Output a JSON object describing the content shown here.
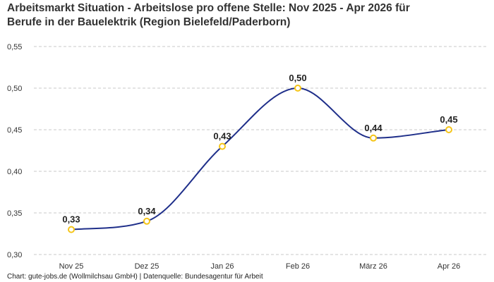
{
  "title_line1": "Arbeitsmarkt Situation - Arbeitslose pro offene Stelle: Nov 2025 - Apr 2026 für",
  "title_line2": "Berufe in der Bauelektrik (Region Bielefeld/Paderborn)",
  "footer": "Chart: gute-jobs.de (Wollmilchsau GmbH) | Datenquelle: Bundesagentur für Arbeit",
  "chart_data": {
    "type": "line",
    "title": "Arbeitsmarkt Situation - Arbeitslose pro offene Stelle: Nov 2025 - Apr 2026 für Berufe in der Bauelektrik (Region Bielefeld/Paderborn)",
    "categories": [
      "Nov 25",
      "Dez 25",
      "Jan 26",
      "Feb 26",
      "März 26",
      "Apr 26"
    ],
    "values": [
      0.33,
      0.34,
      0.43,
      0.5,
      0.44,
      0.45
    ],
    "value_labels": [
      "0,33",
      "0,34",
      "0,43",
      "0,50",
      "0,44",
      "0,45"
    ],
    "y_ticks": [
      0.3,
      0.35,
      0.4,
      0.45,
      0.5,
      0.55
    ],
    "y_tick_labels": [
      "0,30",
      "0,35",
      "0,40",
      "0,45",
      "0,50",
      "0,55"
    ],
    "ylim": [
      0.3,
      0.55
    ],
    "xlabel": "",
    "ylabel": "",
    "grid": "horizontal dashed",
    "line_color": "#1f2f8a",
    "marker_color": "#f5c518"
  }
}
